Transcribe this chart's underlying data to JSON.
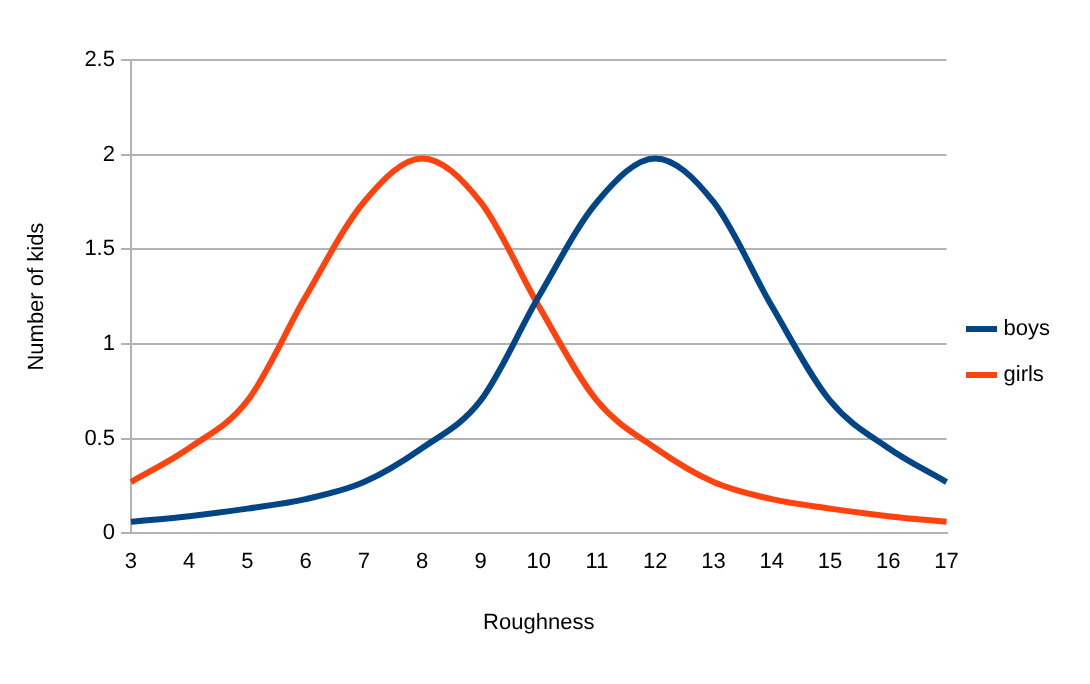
{
  "chart_data": {
    "type": "line",
    "xlabel": "Roughness",
    "ylabel": "Number of kids",
    "categories": [
      "3",
      "4",
      "5",
      "6",
      "7",
      "8",
      "9",
      "10",
      "11",
      "12",
      "13",
      "14",
      "15",
      "16",
      "17"
    ],
    "series": [
      {
        "name": "boys",
        "color": "#004586",
        "values": [
          0.06,
          0.09,
          0.13,
          0.18,
          0.27,
          0.45,
          0.7,
          1.25,
          1.75,
          1.98,
          1.75,
          1.2,
          0.7,
          0.45,
          0.27
        ]
      },
      {
        "name": "girls",
        "color": "#ff420e",
        "values": [
          0.27,
          0.45,
          0.7,
          1.25,
          1.75,
          1.98,
          1.75,
          1.2,
          0.7,
          0.45,
          0.27,
          0.18,
          0.13,
          0.09,
          0.06
        ]
      }
    ],
    "ylim": [
      0,
      2.5
    ],
    "yticks": [
      0,
      0.5,
      1,
      1.5,
      2,
      2.5
    ],
    "grid": "y",
    "legend": "right",
    "marker": "none",
    "line_style": "solid"
  }
}
